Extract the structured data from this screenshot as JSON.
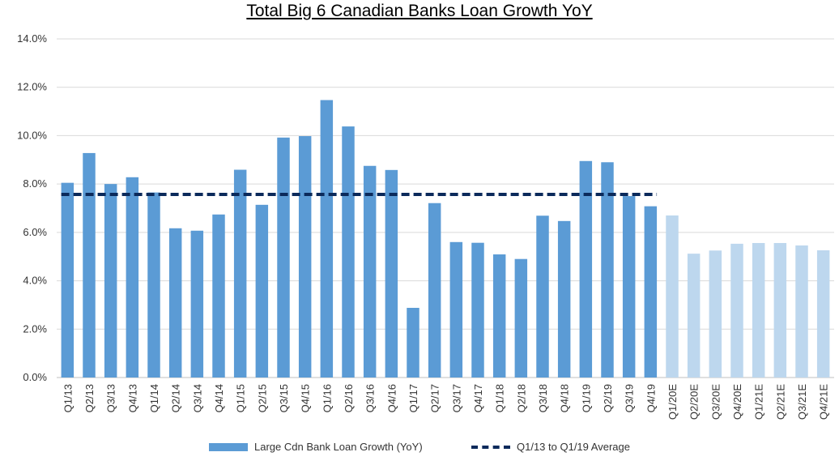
{
  "chart_data": {
    "type": "bar",
    "title": "Total Big 6 Canadian Banks Loan Growth YoY",
    "categories": [
      "Q1/13",
      "Q2/13",
      "Q3/13",
      "Q4/13",
      "Q1/14",
      "Q2/14",
      "Q3/14",
      "Q4/14",
      "Q1/15",
      "Q2/15",
      "Q3/15",
      "Q4/15",
      "Q1/16",
      "Q2/16",
      "Q3/16",
      "Q4/16",
      "Q1/17",
      "Q2/17",
      "Q3/17",
      "Q4/17",
      "Q1/18",
      "Q2/18",
      "Q3/18",
      "Q4/18",
      "Q1/19",
      "Q2/19",
      "Q3/19",
      "Q4/19",
      "Q1/20E",
      "Q2/20E",
      "Q3/20E",
      "Q4/20E",
      "Q1/21E",
      "Q2/21E",
      "Q3/21E",
      "Q4/21E"
    ],
    "series": [
      {
        "name": "Large Cdn Bank Loan Growth (YoY)",
        "values": [
          8.05,
          9.28,
          8.0,
          8.28,
          7.65,
          6.17,
          6.07,
          6.74,
          8.59,
          7.14,
          9.92,
          9.98,
          11.47,
          10.38,
          8.75,
          8.58,
          2.88,
          7.21,
          5.6,
          5.57,
          5.09,
          4.9,
          6.69,
          6.47,
          8.95,
          8.9,
          7.5,
          7.08,
          6.7,
          5.12,
          5.25,
          5.53,
          5.56,
          5.56,
          5.46,
          5.26
        ],
        "color": "#5B9BD5",
        "estimate_color": "#BDD7EE"
      },
      {
        "name": "Q1/13 to Q1/19 Average",
        "type": "line",
        "style": "dashed",
        "value": 7.57,
        "from_category": "Q1/13",
        "to_category": "Q4/19",
        "color": "#0B2A5B"
      }
    ],
    "ylim": [
      0,
      14
    ],
    "yticks": [
      "0.0%",
      "2.0%",
      "4.0%",
      "6.0%",
      "8.0%",
      "10.0%",
      "12.0%",
      "14.0%"
    ],
    "grid": true,
    "legend_position": "bottom"
  },
  "legend": {
    "bar_label": "Large Cdn Bank Loan Growth (YoY)",
    "line_label": "Q1/13 to Q1/19 Average"
  }
}
